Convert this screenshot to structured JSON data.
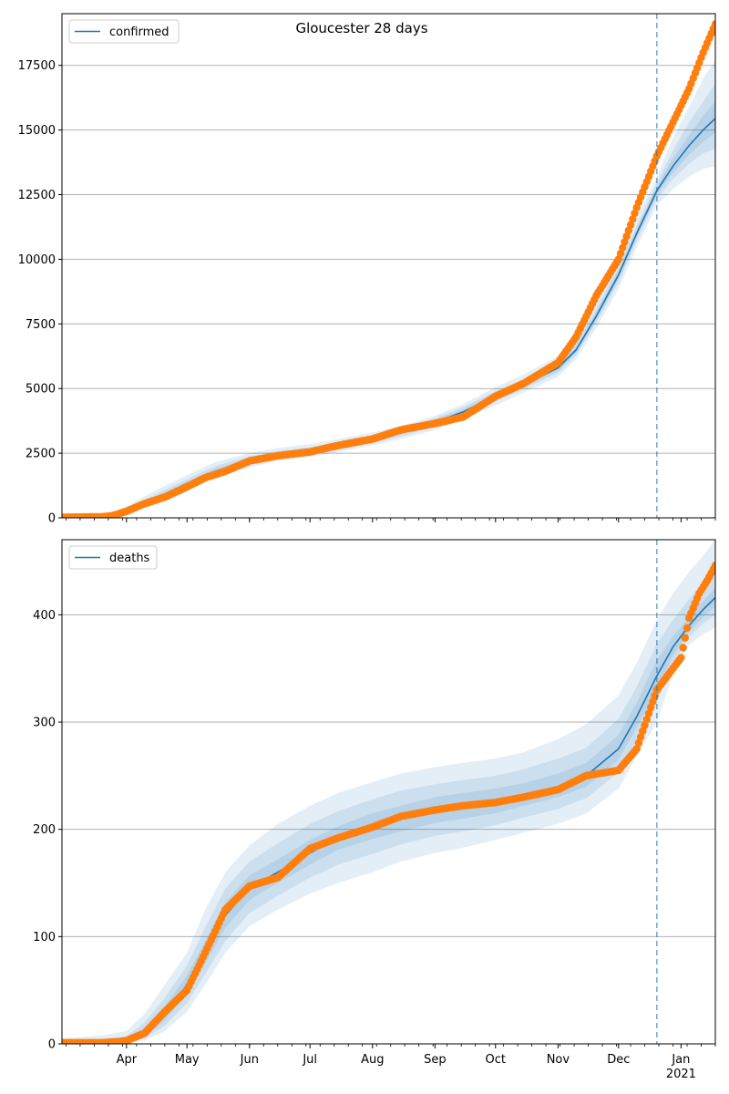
{
  "figure": {
    "title": "Gloucester 28 days"
  },
  "colors": {
    "line": "#1f77b4",
    "band": "#1f77b4",
    "observed": "#ff7f0e",
    "grid": "#b0b0b0",
    "divider": "#1f77b4"
  },
  "chart_data": [
    {
      "type": "line",
      "panel": "top",
      "legend": {
        "label": "confirmed",
        "placement": "top-left"
      },
      "ylim": [
        0,
        19500
      ],
      "yticks": [
        0,
        2500,
        5000,
        7500,
        10000,
        12500,
        15000,
        17500
      ],
      "ytick_labels": [
        "0",
        "2500",
        "5000",
        "7500",
        "10000",
        "12500",
        "15000",
        "17500"
      ],
      "xlim": [
        "2020-02-29",
        "2021-01-18"
      ],
      "xticks_major": [
        "2020-04-01",
        "2020-05-01",
        "2020-06-01",
        "2020-07-01",
        "2020-08-01",
        "2020-09-01",
        "2020-10-01",
        "2020-11-01",
        "2020-12-01",
        "2021-01-01"
      ],
      "xtick_labels": [],
      "forecast_start": "2020-12-20",
      "grid": "horizontal",
      "model": {
        "name": "confirmed",
        "x": [
          "2020-02-29",
          "2020-03-15",
          "2020-03-25",
          "2020-04-01",
          "2020-04-15",
          "2020-05-01",
          "2020-05-15",
          "2020-06-01",
          "2020-06-15",
          "2020-07-01",
          "2020-07-15",
          "2020-08-01",
          "2020-08-15",
          "2020-09-01",
          "2020-09-15",
          "2020-10-01",
          "2020-10-15",
          "2020-11-01",
          "2020-11-10",
          "2020-11-20",
          "2020-12-01",
          "2020-12-10",
          "2020-12-20",
          "2020-12-28",
          "2021-01-05",
          "2021-01-12",
          "2021-01-18"
        ],
        "median": [
          0,
          10,
          80,
          250,
          700,
          1300,
          1800,
          2200,
          2400,
          2550,
          2750,
          3000,
          3300,
          3700,
          4100,
          4700,
          5150,
          5800,
          6500,
          7800,
          9400,
          11000,
          12650,
          13600,
          14400,
          15000,
          15450
        ],
        "bands": [
          {
            "lo": [
              0,
              0,
              40,
              150,
              500,
              1050,
              1550,
              1950,
              2200,
              2350,
              2550,
              2800,
              3050,
              3400,
              3800,
              4350,
              4850,
              5450,
              6150,
              7350,
              8850,
              10450,
              12100,
              12700,
              13200,
              13500,
              13600
            ],
            "hi": [
              30,
              60,
              200,
              450,
              1050,
              1650,
              2150,
              2500,
              2700,
              2850,
              3050,
              3300,
              3550,
              3950,
              4400,
              5050,
              5550,
              6250,
              7000,
              8350,
              10000,
              11600,
              13200,
              14700,
              15900,
              17000,
              17700
            ]
          },
          {
            "lo": [
              0,
              0,
              55,
              190,
              580,
              1150,
              1650,
              2050,
              2280,
              2430,
              2630,
              2880,
              3150,
              3530,
              3930,
              4500,
              4980,
              5600,
              6300,
              7550,
              9100,
              10700,
              12350,
              13100,
              13700,
              14100,
              14300
            ],
            "hi": [
              15,
              40,
              150,
              350,
              900,
              1500,
              2000,
              2380,
              2580,
              2730,
              2930,
              3180,
              3450,
              3860,
              4280,
              4900,
              5350,
              6030,
              6750,
              8100,
              9700,
              11300,
              12950,
              14200,
              15300,
              16100,
              16800
            ]
          },
          {
            "lo": [
              0,
              0,
              65,
              215,
              640,
              1220,
              1720,
              2120,
              2340,
              2490,
              2690,
              2940,
              3230,
              3620,
              4020,
              4600,
              5070,
              5700,
              6400,
              7680,
              9250,
              10850,
              12500,
              13350,
              14050,
              14550,
              14900
            ],
            "hi": [
              10,
              25,
              110,
              300,
              790,
              1400,
              1900,
              2290,
              2480,
              2630,
              2830,
              3080,
              3380,
              3790,
              4200,
              4800,
              5250,
              5920,
              6620,
              7950,
              9550,
              11150,
              12800,
              13900,
              14800,
              15550,
              16100
            ]
          }
        ]
      },
      "observed": {
        "name": "observed",
        "x": [
          "2020-02-29",
          "2020-03-10",
          "2020-03-20",
          "2020-03-25",
          "2020-04-01",
          "2020-04-10",
          "2020-04-20",
          "2020-05-01",
          "2020-05-10",
          "2020-05-20",
          "2020-06-01",
          "2020-06-15",
          "2020-07-01",
          "2020-07-15",
          "2020-08-01",
          "2020-08-15",
          "2020-09-01",
          "2020-09-15",
          "2020-10-01",
          "2020-10-15",
          "2020-11-01",
          "2020-11-10",
          "2020-11-20",
          "2020-12-01",
          "2020-12-10",
          "2020-12-20",
          "2020-12-28",
          "2021-01-05",
          "2021-01-12",
          "2021-01-18"
        ],
        "y": [
          20,
          30,
          40,
          80,
          250,
          550,
          800,
          1200,
          1550,
          1800,
          2200,
          2400,
          2550,
          2800,
          3050,
          3400,
          3650,
          3900,
          4700,
          5200,
          6000,
          7000,
          8600,
          10000,
          12000,
          14000,
          15300,
          16600,
          18000,
          19100
        ]
      }
    },
    {
      "type": "line",
      "panel": "bottom",
      "legend": {
        "label": "deaths",
        "placement": "top-left"
      },
      "ylim": [
        0,
        470
      ],
      "yticks": [
        0,
        100,
        200,
        300,
        400
      ],
      "ytick_labels": [
        "0",
        "100",
        "200",
        "300",
        "400"
      ],
      "xlim": [
        "2020-02-29",
        "2021-01-18"
      ],
      "xticks_major": [
        "2020-04-01",
        "2020-05-01",
        "2020-06-01",
        "2020-07-01",
        "2020-08-01",
        "2020-09-01",
        "2020-10-01",
        "2020-11-01",
        "2020-12-01",
        "2021-01-01"
      ],
      "xtick_labels": [
        "Apr",
        "May",
        "Jun",
        "Jul",
        "Aug",
        "Sep",
        "Oct",
        "Nov",
        "Dec",
        "Jan"
      ],
      "year_label": "2021",
      "forecast_start": "2020-12-20",
      "grid": "horizontal",
      "model": {
        "name": "deaths",
        "x": [
          "2020-02-29",
          "2020-03-20",
          "2020-04-01",
          "2020-04-10",
          "2020-04-20",
          "2020-05-01",
          "2020-05-10",
          "2020-05-20",
          "2020-06-01",
          "2020-06-15",
          "2020-07-01",
          "2020-07-15",
          "2020-08-01",
          "2020-08-15",
          "2020-09-01",
          "2020-09-15",
          "2020-10-01",
          "2020-10-15",
          "2020-11-01",
          "2020-11-15",
          "2020-12-01",
          "2020-12-10",
          "2020-12-20",
          "2020-12-28",
          "2021-01-05",
          "2021-01-12",
          "2021-01-18"
        ],
        "median": [
          0,
          0,
          2,
          10,
          28,
          55,
          85,
          120,
          145,
          160,
          178,
          192,
          203,
          210,
          218,
          222,
          226,
          232,
          240,
          250,
          275,
          305,
          343,
          370,
          390,
          405,
          416
        ],
        "bands": [
          {
            "lo": [
              0,
              0,
              0,
              3,
              12,
              30,
              55,
              85,
              110,
              125,
              140,
              150,
              160,
              170,
              178,
              183,
              190,
              197,
              205,
              215,
              238,
              268,
              300,
              345,
              372,
              382,
              388
            ],
            "hi": [
              5,
              8,
              12,
              28,
              55,
              85,
              125,
              160,
              185,
              205,
              222,
              234,
              244,
              252,
              258,
              262,
              266,
              272,
              284,
              298,
              325,
              355,
              395,
              420,
              440,
              455,
              470
            ]
          },
          {
            "lo": [
              0,
              0,
              0,
              5,
              17,
              38,
              65,
              96,
              122,
              138,
              155,
              167,
              177,
              186,
              194,
              198,
              204,
              211,
              219,
              229,
              253,
              283,
              318,
              355,
              379,
              392,
              400
            ],
            "hi": [
              3,
              5,
              7,
              20,
              43,
              73,
              108,
              145,
              170,
              187,
              205,
              217,
              228,
              236,
              242,
              246,
              250,
              256,
              266,
              276,
              303,
              333,
              373,
              395,
              415,
              430,
              440
            ]
          },
          {
            "lo": [
              0,
              0,
              1,
              7,
              22,
              46,
              75,
              108,
              134,
              150,
              167,
              181,
              191,
              198,
              206,
              210,
              215,
              222,
              230,
              240,
              265,
              295,
              330,
              362,
              384,
              398,
              408
            ],
            "hi": [
              1,
              2,
              4,
              14,
              35,
              64,
              96,
              132,
              157,
              172,
              190,
              203,
              215,
              222,
              230,
              234,
              238,
              243,
              252,
              262,
              288,
              318,
              358,
              380,
              398,
              413,
              425
            ]
          }
        ]
      },
      "observed": {
        "name": "observed",
        "x": [
          "2020-02-29",
          "2020-03-20",
          "2020-03-28",
          "2020-04-01",
          "2020-04-10",
          "2020-04-20",
          "2020-05-01",
          "2020-05-10",
          "2020-05-20",
          "2020-06-01",
          "2020-06-15",
          "2020-07-01",
          "2020-07-15",
          "2020-08-01",
          "2020-08-15",
          "2020-09-01",
          "2020-09-15",
          "2020-10-01",
          "2020-10-15",
          "2020-11-01",
          "2020-11-15",
          "2020-12-01",
          "2020-12-10",
          "2020-12-20",
          "2020-12-28",
          "2021-01-01",
          "2021-01-05",
          "2021-01-10",
          "2021-01-14",
          "2021-01-18"
        ],
        "y": [
          1,
          1,
          2,
          3,
          10,
          30,
          50,
          85,
          125,
          147,
          155,
          182,
          192,
          202,
          212,
          218,
          222,
          225,
          230,
          237,
          250,
          255,
          275,
          330,
          350,
          360,
          397,
          420,
          432,
          446
        ]
      }
    }
  ]
}
